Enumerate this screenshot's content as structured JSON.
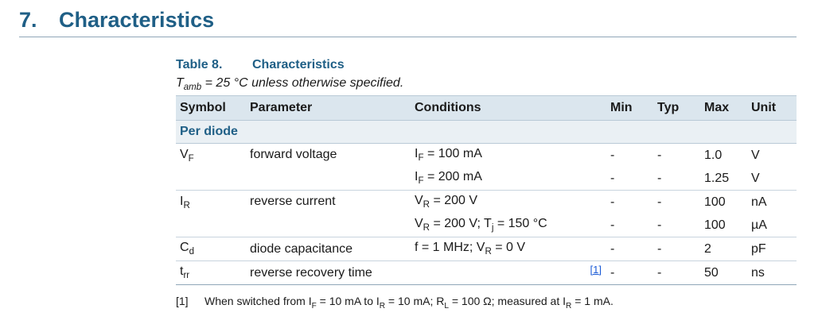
{
  "section": {
    "number": "7.",
    "title": "Characteristics"
  },
  "table": {
    "caption_number": "Table 8.",
    "caption_title": "Characteristics",
    "note": {
      "sym": "T",
      "sub": "amb",
      "rest": " = 25 °C unless otherwise specified."
    },
    "headers": {
      "symbol": "Symbol",
      "parameter": "Parameter",
      "conditions": "Conditions",
      "min": "Min",
      "typ": "Typ",
      "max": "Max",
      "unit": "Unit"
    },
    "group_label": "Per diode",
    "rows": [
      {
        "symbol": {
          "main": "V",
          "sub": "F"
        },
        "parameter": "forward voltage",
        "conditions": [
          {
            "a": "I",
            "sub": "F",
            "b": " = 100 mA",
            "min": "-",
            "typ": "-",
            "max": "1.0",
            "unit": "V"
          },
          {
            "a": "I",
            "sub": "F",
            "b": " = 200 mA",
            "min": "-",
            "typ": "-",
            "max": "1.25",
            "unit": "V"
          }
        ]
      },
      {
        "symbol": {
          "main": "I",
          "sub": "R"
        },
        "parameter": "reverse current",
        "conditions": [
          {
            "a": "V",
            "sub": "R",
            "b": " = 200 V",
            "min": "-",
            "typ": "-",
            "max": "100",
            "unit": "nA"
          },
          {
            "a": "V",
            "sub": "R",
            "b": " = 200 V; T",
            "sub2": "j",
            "c": " = 150 °C",
            "min": "-",
            "typ": "-",
            "max": "100",
            "unit": "µA"
          }
        ]
      },
      {
        "symbol": {
          "main": "C",
          "sub": "d"
        },
        "parameter": "diode capacitance",
        "conditions": [
          {
            "a": "f = 1 MHz; V",
            "sub": "R",
            "b": " = 0 V",
            "min": "-",
            "typ": "-",
            "max": "2",
            "unit": "pF"
          }
        ]
      },
      {
        "symbol": {
          "main": "t",
          "sub": "rr"
        },
        "parameter": "reverse recovery time",
        "footnote_ref": "[1]",
        "conditions": [
          {
            "min": "-",
            "typ": "-",
            "max": "50",
            "unit": "ns"
          }
        ]
      }
    ],
    "footnote": {
      "mark": "[1]",
      "p1": "When switched from I",
      "s1": "F",
      "p2": " = 10 mA to I",
      "s2": "R",
      "p3": " = 10 mA; R",
      "s3": "L",
      "p4": " = 100 Ω; measured at I",
      "s4": "R",
      "p5": " = 1 mA."
    }
  }
}
